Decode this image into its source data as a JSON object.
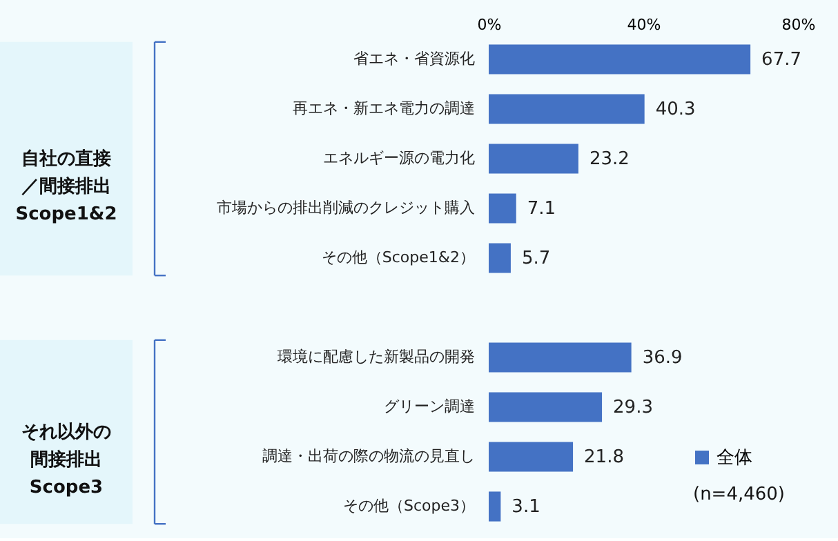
{
  "chart_data": {
    "type": "bar",
    "orientation": "horizontal",
    "categories": [
      "省エネ・省資源化",
      "再エネ・新エネ電力の調達",
      "エネルギー源の電力化",
      "市場からの排出削減のクレジット購入",
      "その他（Scope1&2）",
      null,
      "環境に配慮した新製品の開発",
      "グリーン調達",
      "調達・出荷の際の物流の見直し",
      "その他（Scope3）"
    ],
    "series": [
      {
        "name": "全体",
        "color": "#4472c4",
        "values": [
          67.7,
          40.3,
          23.2,
          7.1,
          5.7,
          null,
          36.9,
          29.3,
          21.8,
          3.1
        ]
      }
    ],
    "xlim": [
      0,
      80
    ],
    "xticks": [
      {
        "value": 0,
        "label": "0%"
      },
      {
        "value": 40,
        "label": "40%"
      },
      {
        "value": 80,
        "label": "80%"
      }
    ],
    "data_labels": true,
    "legend": "bottom right",
    "grid": false,
    "annotations": [
      "自社の直接／間接排出",
      "Scope1&2",
      "それ以外の間接排出",
      "Scope3",
      "(n=4,460)"
    ]
  }
}
